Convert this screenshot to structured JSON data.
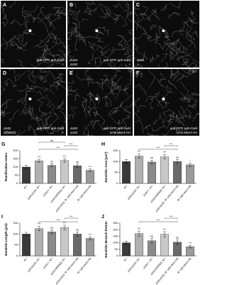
{
  "panels": [
    {
      "letter": "A",
      "left": [],
      "right": [
        "ppk-GFP, ppk-Gal4",
        "+"
      ]
    },
    {
      "letter": "B",
      "left": [
        "Δ181",
        "Δ181"
      ],
      "right": [
        "ppk-GFP, ppk-Gal4",
        "+"
      ]
    },
    {
      "letter": "C",
      "left": [
        "Δ181",
        "+"
      ],
      "right": []
    },
    {
      "letter": "D",
      "left": [
        "Δ181",
        "Df(6062)"
      ],
      "right": [
        "ppk-GFP, ppk-Gal4",
        "+"
      ]
    },
    {
      "letter": "E",
      "left": [
        "Δ181",
        "Δ181"
      ],
      "right": [
        "ppk-GFP, ppk-Gal4",
        "UAS-Mon1:HA"
      ]
    },
    {
      "letter": "F",
      "left": [],
      "right": [
        "ppk-GFP, ppk-Gal4",
        "UAS-Mon1:HA"
      ]
    }
  ],
  "chart_data": [
    {
      "type": "bar",
      "panel_label": "G",
      "ylabel": "Ramification Index",
      "categories": [
        "R/+",
        "Δ181/Δ181; R/+",
        "Δ181/+; R/+",
        "Δ181/Df(6062); R/+",
        "Δ181/Δ181; R/ UAS-Mon1:HA",
        "R/ UAS-Mon1:HA"
      ],
      "values": [
        100,
        138,
        110,
        140,
        108,
        80
      ],
      "errors": [
        10,
        10,
        9,
        11,
        10,
        8
      ],
      "colors": [
        "#3a3a3a",
        "#b0b0b0",
        "#8a8a8a",
        "#c8c8c8",
        "#6a6a6a",
        "#9a9a9a"
      ],
      "sig": [
        null,
        "***",
        "ns",
        "***",
        "ns",
        "***"
      ],
      "brackets": [
        {
          "from": 1,
          "to": 4,
          "label": "***"
        },
        {
          "from": 3,
          "to": 4,
          "label": "***"
        },
        {
          "from": 1,
          "to": 3,
          "label": "ns"
        }
      ],
      "ylim": [
        0,
        200
      ],
      "yticks": [
        0,
        50,
        100,
        150,
        200
      ]
    },
    {
      "type": "bar",
      "panel_label": "H",
      "ylabel": "Dendritic Area (μm²)",
      "categories": [
        "R/+",
        "Δ181/Δ181; R/+",
        "Δ181/+; R/+",
        "Δ181/Df(6062); R/+",
        "Δ181/Δ181; R/ UAS-Mon1:HA",
        "R/ UAS-Mon1:HA"
      ],
      "values": [
        100,
        125,
        98,
        122,
        100,
        85
      ],
      "errors": [
        10,
        10,
        9,
        10,
        9,
        8
      ],
      "colors": [
        "#3a3a3a",
        "#b0b0b0",
        "#8a8a8a",
        "#c8c8c8",
        "#6a6a6a",
        "#9a9a9a"
      ],
      "sig": [
        null,
        "***",
        "ns",
        "***",
        "ns",
        "*"
      ],
      "brackets": [
        {
          "from": 1,
          "to": 4,
          "label": "***"
        },
        {
          "from": 3,
          "to": 4,
          "label": "***"
        }
      ],
      "ylim": [
        0,
        150
      ],
      "yticks": [
        0,
        50,
        100,
        150
      ]
    },
    {
      "type": "bar",
      "panel_label": "I",
      "ylabel": "Dendrite Length (μm)",
      "categories": [
        "R/+",
        "Δ181/Δ181; R/+",
        "Δ181/+; R/+",
        "Δ181/Df(6062); R/+",
        "Δ181/Δ181; R/ UAS-Mon1:HA",
        "R/ UAS-Mon1:HA"
      ],
      "values": [
        100,
        125,
        110,
        130,
        100,
        80
      ],
      "errors": [
        8,
        10,
        9,
        10,
        10,
        7
      ],
      "colors": [
        "#3a3a3a",
        "#b0b0b0",
        "#8a8a8a",
        "#c8c8c8",
        "#6a6a6a",
        "#9a9a9a"
      ],
      "sig": [
        null,
        "***",
        "ns",
        "***",
        "ns",
        "***"
      ],
      "brackets": [
        {
          "from": 1,
          "to": 4,
          "label": "***"
        },
        {
          "from": 3,
          "to": 4,
          "label": "***"
        }
      ],
      "ylim": [
        0,
        150
      ],
      "yticks": [
        0,
        50,
        100,
        150
      ]
    },
    {
      "type": "bar",
      "panel_label": "J",
      "ylabel": "Dendritic Branch Points",
      "categories": [
        "R/+",
        "Δ181/Δ181; R/+",
        "Δ181/+; R/+",
        "Δ181/Df(6062); R/+",
        "Δ181/Δ181; R/ UAS-Mon1:HA",
        "R/ UAS-Mon1:HA"
      ],
      "values": [
        100,
        170,
        115,
        165,
        105,
        70
      ],
      "errors": [
        12,
        20,
        18,
        20,
        18,
        10
      ],
      "colors": [
        "#3a3a3a",
        "#b0b0b0",
        "#8a8a8a",
        "#c8c8c8",
        "#6a6a6a",
        "#9a9a9a"
      ],
      "sig": [
        null,
        "***",
        "ns",
        "***",
        "ns",
        "***"
      ],
      "brackets": [
        {
          "from": 1,
          "to": 4,
          "label": "***"
        },
        {
          "from": 3,
          "to": 4,
          "label": "***"
        }
      ],
      "ylim": [
        0,
        250
      ],
      "yticks": [
        0,
        50,
        100,
        150,
        200,
        250
      ]
    }
  ]
}
